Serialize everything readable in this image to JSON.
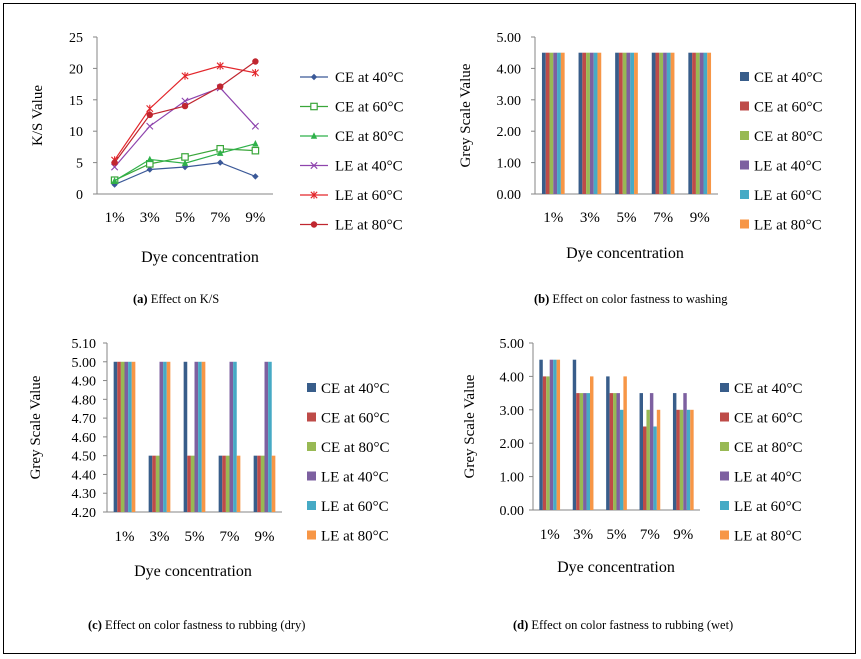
{
  "legend_labels": [
    "CE at 40°C",
    "CE at 60°C",
    "CE at 80°C",
    "LE at 40°C",
    "LE at 60°C",
    "LE at 80°C"
  ],
  "series_colors": [
    "#385d8a",
    "#be4b48",
    "#98b954",
    "#7d60a0",
    "#46aac5",
    "#f79646"
  ],
  "line_colors": [
    "#3b5998",
    "#3aa63a",
    "#2fb14a",
    "#8e44ad",
    "#e3262b",
    "#c0262f"
  ],
  "charts": [
    {
      "panel_letter": "(a)",
      "panel_caption": " Effect on K/S",
      "chart_data": {
        "type": "line",
        "categories": [
          "1%",
          "3%",
          "5%",
          "7%",
          "9%"
        ],
        "xlabel": "Dye concentration",
        "ylabel": "K/S Value",
        "ylim": [
          0,
          25
        ],
        "yticks": [
          "0",
          "5",
          "10",
          "15",
          "20",
          "25"
        ],
        "grid": false,
        "legend_position": "right",
        "series": [
          {
            "name": "CE at 40°C",
            "values": [
              1.5,
              3.9,
              4.3,
              5.0,
              2.8
            ],
            "marker": "diamond"
          },
          {
            "name": "CE at 60°C",
            "values": [
              2.2,
              4.8,
              5.9,
              7.2,
              6.9
            ],
            "marker": "square-open"
          },
          {
            "name": "CE at 80°C",
            "values": [
              2.1,
              5.5,
              4.9,
              6.5,
              8.0
            ],
            "marker": "triangle"
          },
          {
            "name": "LE at 40°C",
            "values": [
              4.3,
              10.8,
              14.8,
              16.9,
              10.8
            ],
            "marker": "x"
          },
          {
            "name": "LE at 60°C",
            "values": [
              5.4,
              13.6,
              18.8,
              20.4,
              19.3
            ],
            "marker": "star"
          },
          {
            "name": "LE at 80°C",
            "values": [
              5.0,
              12.6,
              14.0,
              17.1,
              21.1
            ],
            "marker": "circle"
          }
        ]
      }
    },
    {
      "panel_letter": "(b)",
      "panel_caption": " Effect on color fastness to washing",
      "chart_data": {
        "type": "bar",
        "categories": [
          "1%",
          "3%",
          "5%",
          "7%",
          "9%"
        ],
        "xlabel": "Dye concentration",
        "ylabel": "Grey Scale Value",
        "ylim": [
          0,
          5
        ],
        "yticks": [
          "0.00",
          "1.00",
          "2.00",
          "3.00",
          "4.00",
          "5.00"
        ],
        "grid": false,
        "legend_position": "right",
        "series": [
          {
            "name": "CE at 40°C",
            "values": [
              4.5,
              4.5,
              4.5,
              4.5,
              4.5
            ]
          },
          {
            "name": "CE at 60°C",
            "values": [
              4.5,
              4.5,
              4.5,
              4.5,
              4.5
            ]
          },
          {
            "name": "CE at 80°C",
            "values": [
              4.5,
              4.5,
              4.5,
              4.5,
              4.5
            ]
          },
          {
            "name": "LE at 40°C",
            "values": [
              4.5,
              4.5,
              4.5,
              4.5,
              4.5
            ]
          },
          {
            "name": "LE at 60°C",
            "values": [
              4.5,
              4.5,
              4.5,
              4.5,
              4.5
            ]
          },
          {
            "name": "LE at 80°C",
            "values": [
              4.5,
              4.5,
              4.5,
              4.5,
              4.5
            ]
          }
        ]
      }
    },
    {
      "panel_letter": "(c)",
      "panel_caption": " Effect on color fastness to rubbing (dry)",
      "chart_data": {
        "type": "bar",
        "categories": [
          "1%",
          "3%",
          "5%",
          "7%",
          "9%"
        ],
        "xlabel": "Dye concentration",
        "ylabel": "Grey Scale Value",
        "ylim": [
          4.2,
          5.1
        ],
        "yticks": [
          "4.20",
          "4.30",
          "4.40",
          "4.50",
          "4.60",
          "4.70",
          "4.80",
          "4.90",
          "5.00",
          "5.10"
        ],
        "grid": false,
        "legend_position": "right",
        "series": [
          {
            "name": "CE at 40°C",
            "values": [
              5.0,
              4.5,
              5.0,
              4.5,
              4.5
            ]
          },
          {
            "name": "CE at 60°C",
            "values": [
              5.0,
              4.5,
              4.5,
              4.5,
              4.5
            ]
          },
          {
            "name": "CE at 80°C",
            "values": [
              5.0,
              4.5,
              4.5,
              4.5,
              4.5
            ]
          },
          {
            "name": "LE at 40°C",
            "values": [
              5.0,
              5.0,
              5.0,
              5.0,
              5.0
            ]
          },
          {
            "name": "LE at 60°C",
            "values": [
              5.0,
              5.0,
              5.0,
              5.0,
              5.0
            ]
          },
          {
            "name": "LE at 80°C",
            "values": [
              5.0,
              5.0,
              5.0,
              4.5,
              4.5
            ]
          }
        ]
      }
    },
    {
      "panel_letter": "(d)",
      "panel_caption": " Effect on color fastness to rubbing (wet)",
      "chart_data": {
        "type": "bar",
        "categories": [
          "1%",
          "3%",
          "5%",
          "7%",
          "9%"
        ],
        "xlabel": "Dye concentration",
        "ylabel": "Grey Scale Value",
        "ylim": [
          0,
          5
        ],
        "yticks": [
          "0.00",
          "1.00",
          "2.00",
          "3.00",
          "4.00",
          "5.00"
        ],
        "grid": false,
        "legend_position": "right",
        "series": [
          {
            "name": "CE at 40°C",
            "values": [
              4.5,
              4.5,
              4.0,
              3.5,
              3.5
            ]
          },
          {
            "name": "CE at 60°C",
            "values": [
              4.0,
              3.5,
              3.5,
              2.5,
              3.0
            ]
          },
          {
            "name": "CE at 80°C",
            "values": [
              4.0,
              3.5,
              3.5,
              3.0,
              3.0
            ]
          },
          {
            "name": "LE at 40°C",
            "values": [
              4.5,
              3.5,
              3.5,
              3.5,
              3.5
            ]
          },
          {
            "name": "LE at 60°C",
            "values": [
              4.5,
              3.5,
              3.0,
              2.5,
              3.0
            ]
          },
          {
            "name": "LE at 80°C",
            "values": [
              4.5,
              4.0,
              4.0,
              3.0,
              3.0
            ]
          }
        ]
      }
    }
  ]
}
